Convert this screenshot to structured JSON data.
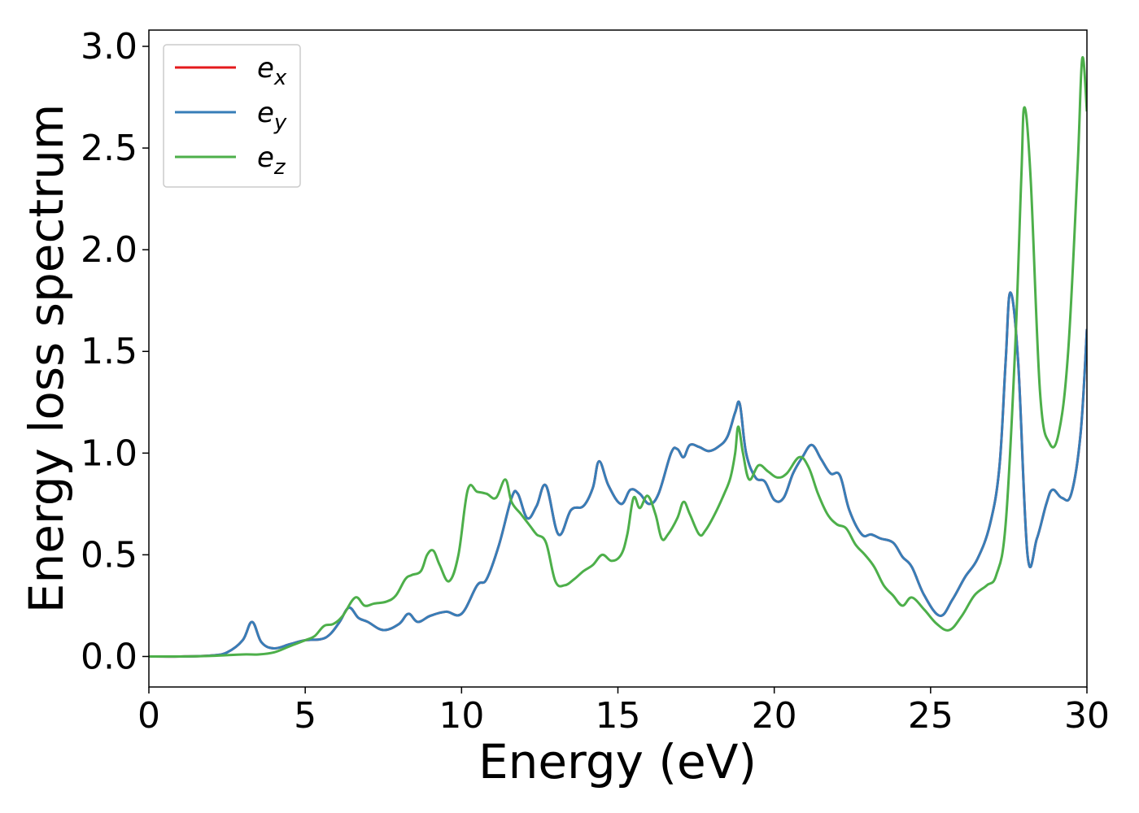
{
  "chart_data": {
    "type": "line",
    "xlabel": "Energy (eV)",
    "ylabel": "Energy loss spectrum",
    "xlim": [
      0,
      30
    ],
    "ylim": [
      -0.15,
      3.08
    ],
    "xticks": [
      {
        "value": 0,
        "label": "0"
      },
      {
        "value": 5,
        "label": "5"
      },
      {
        "value": 10,
        "label": "10"
      },
      {
        "value": 15,
        "label": "15"
      },
      {
        "value": 20,
        "label": "20"
      },
      {
        "value": 25,
        "label": "25"
      },
      {
        "value": 30,
        "label": "30"
      }
    ],
    "yticks": [
      {
        "value": 0.0,
        "label": "0.0"
      },
      {
        "value": 0.5,
        "label": "0.5"
      },
      {
        "value": 1.0,
        "label": "1.0"
      },
      {
        "value": 1.5,
        "label": "1.5"
      },
      {
        "value": 2.0,
        "label": "2.0"
      },
      {
        "value": 2.5,
        "label": "2.5"
      },
      {
        "value": 3.0,
        "label": "3.0"
      }
    ],
    "grid": false,
    "legend_position": "top-left",
    "series": [
      {
        "name": "e_x",
        "legend_base": "e",
        "legend_sub": "x",
        "color": "#e41a1c",
        "same_as": "e_y"
      },
      {
        "name": "e_y",
        "legend_base": "e",
        "legend_sub": "y",
        "color": "#377eb8",
        "x": [
          0,
          1,
          2,
          2.5,
          3.0,
          3.3,
          3.6,
          4.0,
          4.5,
          5.0,
          5.5,
          5.8,
          6.1,
          6.4,
          6.7,
          7.0,
          7.5,
          8.0,
          8.3,
          8.6,
          9.0,
          9.5,
          10.0,
          10.5,
          10.8,
          11.2,
          11.6,
          11.8,
          12.1,
          12.4,
          12.7,
          13.1,
          13.5,
          13.9,
          14.2,
          14.4,
          14.7,
          15.1,
          15.4,
          15.7,
          16.0,
          16.3,
          16.7,
          16.9,
          17.1,
          17.3,
          17.6,
          17.9,
          18.2,
          18.5,
          18.75,
          18.9,
          19.1,
          19.4,
          19.7,
          20.0,
          20.3,
          20.6,
          20.9,
          21.2,
          21.5,
          21.8,
          22.1,
          22.4,
          22.8,
          23.1,
          23.4,
          23.8,
          24.1,
          24.4,
          24.8,
          25.3,
          25.7,
          26.1,
          26.5,
          26.9,
          27.2,
          27.4,
          27.55,
          27.8,
          28.1,
          28.4,
          28.7,
          28.9,
          29.2,
          29.5,
          29.8,
          30.0
        ],
        "y": [
          0.0,
          0.0,
          0.005,
          0.02,
          0.08,
          0.17,
          0.07,
          0.04,
          0.06,
          0.08,
          0.085,
          0.11,
          0.17,
          0.24,
          0.19,
          0.17,
          0.13,
          0.16,
          0.21,
          0.17,
          0.2,
          0.22,
          0.21,
          0.35,
          0.38,
          0.55,
          0.78,
          0.8,
          0.68,
          0.74,
          0.84,
          0.6,
          0.72,
          0.74,
          0.83,
          0.96,
          0.84,
          0.75,
          0.82,
          0.8,
          0.75,
          0.8,
          1.0,
          1.02,
          0.98,
          1.04,
          1.03,
          1.01,
          1.03,
          1.08,
          1.2,
          1.24,
          1.0,
          0.88,
          0.86,
          0.77,
          0.78,
          0.9,
          0.98,
          1.04,
          0.97,
          0.9,
          0.89,
          0.72,
          0.6,
          0.6,
          0.58,
          0.56,
          0.49,
          0.44,
          0.3,
          0.2,
          0.28,
          0.39,
          0.48,
          0.65,
          0.93,
          1.45,
          1.79,
          1.45,
          0.5,
          0.58,
          0.75,
          0.82,
          0.78,
          0.8,
          1.1,
          1.61
        ]
      },
      {
        "name": "e_z",
        "legend_base": "e",
        "legend_sub": "z",
        "color": "#4daf4a",
        "x": [
          0,
          1,
          2,
          3.0,
          3.5,
          4.0,
          4.5,
          5.0,
          5.3,
          5.6,
          5.9,
          6.2,
          6.6,
          6.9,
          7.2,
          7.6,
          7.9,
          8.2,
          8.4,
          8.7,
          8.9,
          9.1,
          9.3,
          9.6,
          9.9,
          10.2,
          10.5,
          10.8,
          11.1,
          11.4,
          11.6,
          11.9,
          12.2,
          12.4,
          12.7,
          13.0,
          13.3,
          13.6,
          13.9,
          14.2,
          14.5,
          14.8,
          15.1,
          15.3,
          15.5,
          15.7,
          15.95,
          16.2,
          16.4,
          16.6,
          16.9,
          17.1,
          17.3,
          17.6,
          17.8,
          18.1,
          18.4,
          18.6,
          18.75,
          18.85,
          19.0,
          19.2,
          19.5,
          19.8,
          20.1,
          20.4,
          20.8,
          21.1,
          21.4,
          21.7,
          22.0,
          22.3,
          22.6,
          22.9,
          23.2,
          23.5,
          23.8,
          24.1,
          24.4,
          24.8,
          25.2,
          25.6,
          26.0,
          26.4,
          26.8,
          27.1,
          27.4,
          27.7,
          27.9,
          28.0,
          28.2,
          28.5,
          28.8,
          29.1,
          29.4,
          29.7,
          29.85,
          30.0
        ],
        "y": [
          0.0,
          0.0,
          0.003,
          0.01,
          0.01,
          0.02,
          0.05,
          0.08,
          0.1,
          0.15,
          0.16,
          0.2,
          0.29,
          0.25,
          0.26,
          0.27,
          0.3,
          0.38,
          0.4,
          0.42,
          0.5,
          0.52,
          0.45,
          0.37,
          0.5,
          0.82,
          0.81,
          0.8,
          0.78,
          0.87,
          0.76,
          0.7,
          0.64,
          0.6,
          0.56,
          0.37,
          0.35,
          0.38,
          0.42,
          0.45,
          0.5,
          0.47,
          0.5,
          0.6,
          0.78,
          0.73,
          0.79,
          0.7,
          0.58,
          0.6,
          0.68,
          0.76,
          0.7,
          0.6,
          0.62,
          0.7,
          0.8,
          0.88,
          1.0,
          1.13,
          1.0,
          0.87,
          0.94,
          0.91,
          0.88,
          0.9,
          0.98,
          0.93,
          0.8,
          0.7,
          0.65,
          0.63,
          0.55,
          0.5,
          0.44,
          0.35,
          0.3,
          0.25,
          0.29,
          0.23,
          0.16,
          0.13,
          0.2,
          0.3,
          0.35,
          0.4,
          0.65,
          1.5,
          2.35,
          2.7,
          2.35,
          1.3,
          1.05,
          1.1,
          1.5,
          2.4,
          2.94,
          2.68
        ]
      }
    ]
  }
}
